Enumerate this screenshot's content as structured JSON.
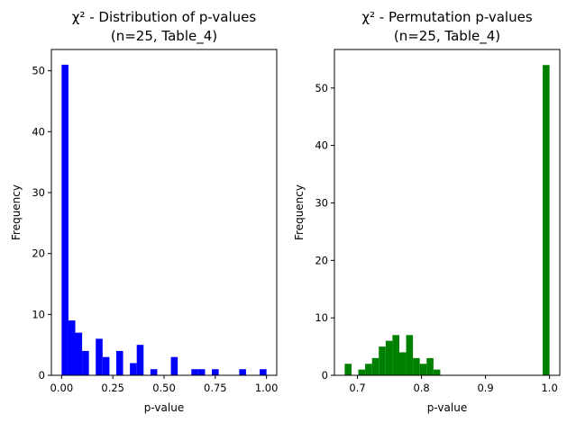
{
  "chart_data": [
    {
      "type": "bar",
      "title_line1": "χ² - Distribution of p-values",
      "title_line2": "(n=25, Table_4)",
      "xlabel": "p-value",
      "ylabel": "Frequency",
      "color": "#0000ff",
      "xlim": [
        -0.05,
        1.05
      ],
      "ylim": [
        0,
        53.5
      ],
      "xticks": [
        0.0,
        0.25,
        0.5,
        0.75,
        1.0
      ],
      "xtick_labels": [
        "0.00",
        "0.25",
        "0.50",
        "0.75",
        "1.00"
      ],
      "yticks": [
        0,
        10,
        20,
        30,
        40,
        50
      ],
      "ytick_labels": [
        "0",
        "10",
        "20",
        "30",
        "40",
        "50"
      ],
      "bin_edges_range": [
        0.0,
        1.0
      ],
      "bin_count": 30,
      "values": [
        51,
        9,
        7,
        4,
        0,
        6,
        3,
        0,
        4,
        0,
        2,
        5,
        0,
        1,
        0,
        0,
        3,
        0,
        0,
        1,
        1,
        0,
        1,
        0,
        0,
        0,
        1,
        0,
        0,
        1
      ]
    },
    {
      "type": "bar",
      "title_line1": "χ² - Permutation p-values",
      "title_line2": "(n=25, Table_4)",
      "xlabel": "p-value",
      "ylabel": "Frequency",
      "color": "#008000",
      "xlim": [
        0.664,
        1.016
      ],
      "ylim": [
        0,
        56.7
      ],
      "xticks": [
        0.7,
        0.8,
        0.9,
        1.0
      ],
      "xtick_labels": [
        "0.7",
        "0.8",
        "0.9",
        "1.0"
      ],
      "yticks": [
        0,
        10,
        20,
        30,
        40,
        50
      ],
      "ytick_labels": [
        "0",
        "10",
        "20",
        "30",
        "40",
        "50"
      ],
      "bin_edges_range": [
        0.68,
        1.0
      ],
      "bin_count": 30,
      "values": [
        2,
        0,
        1,
        2,
        3,
        5,
        6,
        7,
        4,
        7,
        3,
        2,
        3,
        1,
        0,
        0,
        0,
        0,
        0,
        0,
        0,
        0,
        0,
        0,
        0,
        0,
        0,
        0,
        0,
        54
      ]
    }
  ]
}
